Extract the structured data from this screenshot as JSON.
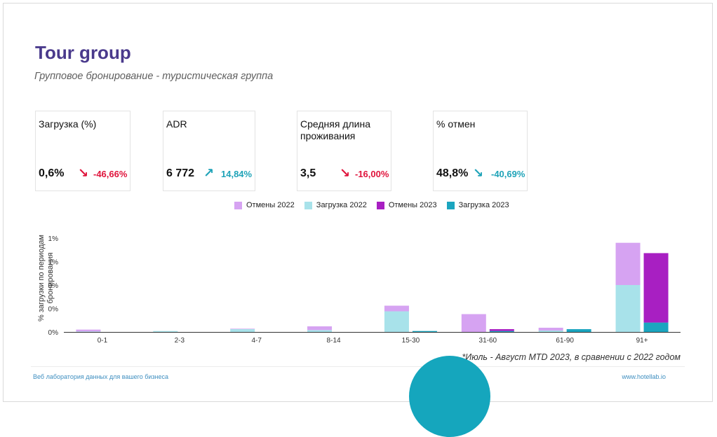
{
  "header": {
    "title": "Tour group",
    "subtitle": "Групповое бронирование - туристическая группа"
  },
  "kpis": [
    {
      "label": "Загрузка (%)",
      "value": "0,6%",
      "delta": "-46,66%",
      "direction": "down",
      "color": "#e0143c",
      "icon": "arrow-down-right-icon"
    },
    {
      "label": "ADR",
      "value": "6 772",
      "delta": "14,84%",
      "direction": "up",
      "color": "#1fa3b8",
      "icon": "arrow-up-right-icon"
    },
    {
      "label": "Средняя длина проживания",
      "value": "3,5",
      "delta": "-16,00%",
      "direction": "down",
      "color": "#e0143c",
      "icon": "arrow-down-right-icon"
    },
    {
      "label": "% отмен",
      "value": "48,8%",
      "delta": "-40,69%",
      "direction": "down",
      "color": "#1fa3b8",
      "icon": "arrow-down-right-icon"
    }
  ],
  "chart_data": {
    "type": "bar",
    "stacking": "stacked per year, 2022 and 2023 side by side",
    "categories": [
      "0-1",
      "2-3",
      "4-7",
      "8-14",
      "15-30",
      "31-60",
      "61-90",
      "91+"
    ],
    "series": [
      {
        "name": "Загрузка 2022",
        "stack": "2022",
        "color": "#a8e2ea",
        "values": [
          0.01,
          0.02,
          0.06,
          0.04,
          0.44,
          0.0,
          0.03,
          1.0
        ]
      },
      {
        "name": "Отмены 2022",
        "stack": "2022",
        "color": "#d6a3f2",
        "values": [
          0.04,
          0.0,
          0.01,
          0.08,
          0.12,
          0.38,
          0.06,
          0.9
        ]
      },
      {
        "name": "Загрузка 2023",
        "stack": "2023",
        "color": "#1ba5bf",
        "values": [
          0.0,
          0.0,
          0.0,
          0.0,
          0.02,
          0.02,
          0.06,
          0.2
        ]
      },
      {
        "name": "Отмены 2023",
        "stack": "2023",
        "color": "#a81fc2",
        "values": [
          0.0,
          0.0,
          0.0,
          0.0,
          0.0,
          0.04,
          0.0,
          1.48
        ]
      }
    ],
    "legend_order": [
      "Отмены 2022",
      "Загрузка 2022",
      "Отмены 2023",
      "Загрузка 2023"
    ],
    "legend_position": "top",
    "ylabel": "% загрузки по периодам бронирования",
    "xlabel": "",
    "ytick_labels": [
      "0%",
      "0%",
      "0%",
      "1%",
      "1%"
    ],
    "ylim": [
      0,
      2.0
    ],
    "grid": false
  },
  "footnote": "*Июль - Август MTD 2023, в сравнении с 2022 годом",
  "footer": {
    "left": "Веб лаборатория данных для вашего бизнеса",
    "right": "www.hotellab.io"
  }
}
